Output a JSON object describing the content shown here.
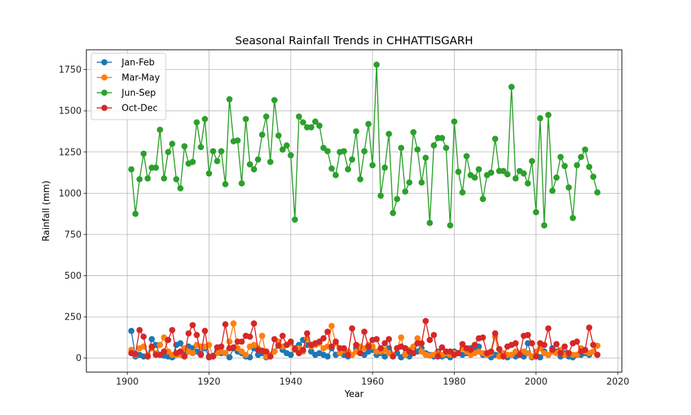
{
  "chart_data": {
    "type": "line",
    "title": "Seasonal Rainfall Trends in CHHATTISGARH",
    "xlabel": "Year",
    "ylabel": "Rainfall (mm)",
    "xlim": [
      1890,
      2021
    ],
    "ylim": [
      -85,
      1870
    ],
    "xticks": [
      1900,
      1920,
      1940,
      1960,
      1980,
      2000,
      2020
    ],
    "yticks": [
      0,
      250,
      500,
      750,
      1000,
      1250,
      1500,
      1750
    ],
    "grid": true,
    "legend_position": "top-left",
    "marker": "circle",
    "x_start": 1901,
    "x_end": 2015,
    "series": [
      {
        "name": "Jan-Feb",
        "color": "#1f77b4",
        "values": [
          165,
          10,
          20,
          10,
          10,
          115,
          80,
          20,
          15,
          10,
          5,
          80,
          90,
          20,
          70,
          60,
          40,
          25,
          60,
          10,
          15,
          40,
          30,
          30,
          5,
          60,
          40,
          30,
          10,
          5,
          60,
          20,
          30,
          5,
          10,
          40,
          80,
          50,
          30,
          20,
          60,
          80,
          110,
          80,
          40,
          20,
          30,
          20,
          10,
          60,
          20,
          30,
          20,
          10,
          20,
          60,
          30,
          20,
          40,
          50,
          20,
          30,
          10,
          60,
          20,
          30,
          5,
          60,
          10,
          30,
          40,
          60,
          30,
          20,
          10,
          40,
          10,
          20,
          5,
          40,
          30,
          20,
          30,
          60,
          60,
          70,
          20,
          30,
          5,
          20,
          20,
          10,
          5,
          20,
          10,
          30,
          10,
          90,
          5,
          20,
          5,
          40,
          20,
          60,
          40,
          10,
          30,
          10,
          5,
          20,
          20,
          30,
          20,
          40,
          20
        ]
      },
      {
        "name": "Mar-May",
        "color": "#ff7f0e",
        "values": [
          50,
          20,
          60,
          70,
          20,
          60,
          30,
          80,
          125,
          40,
          20,
          20,
          20,
          60,
          40,
          30,
          80,
          70,
          70,
          80,
          10,
          30,
          40,
          30,
          100,
          210,
          60,
          40,
          20,
          70,
          80,
          60,
          135,
          10,
          20,
          40,
          100,
          70,
          80,
          90,
          50,
          60,
          40,
          120,
          70,
          80,
          90,
          60,
          70,
          195,
          90,
          30,
          50,
          40,
          20,
          40,
          70,
          60,
          80,
          70,
          40,
          40,
          50,
          30,
          20,
          60,
          125,
          20,
          50,
          70,
          120,
          40,
          20,
          15,
          20,
          30,
          20,
          30,
          20,
          30,
          30,
          60,
          40,
          20,
          30,
          40,
          30,
          20,
          30,
          130,
          10,
          30,
          20,
          20,
          40,
          30,
          40,
          30,
          10,
          40,
          60,
          30,
          20,
          40,
          30,
          50,
          20,
          30,
          20,
          20,
          60,
          40,
          30,
          40,
          75
        ]
      },
      {
        "name": "Jun-Sep",
        "color": "#2ca02c",
        "values": [
          1145,
          875,
          1085,
          1240,
          1090,
          1155,
          1155,
          1385,
          1090,
          1250,
          1300,
          1085,
          1030,
          1285,
          1180,
          1190,
          1430,
          1280,
          1450,
          1120,
          1255,
          1195,
          1255,
          1055,
          1570,
          1315,
          1320,
          1060,
          1450,
          1175,
          1145,
          1205,
          1355,
          1465,
          1190,
          1565,
          1350,
          1265,
          1290,
          1230,
          840,
          1465,
          1430,
          1400,
          1400,
          1435,
          1410,
          1275,
          1255,
          1150,
          1110,
          1250,
          1255,
          1145,
          1205,
          1375,
          1085,
          1255,
          1420,
          1170,
          1780,
          985,
          1155,
          1360,
          880,
          965,
          1275,
          1010,
          1065,
          1370,
          1265,
          1065,
          1215,
          820,
          1290,
          1335,
          1335,
          1275,
          805,
          1435,
          1130,
          1005,
          1225,
          1110,
          1095,
          1145,
          965,
          1110,
          1125,
          1330,
          1135,
          1135,
          1115,
          1645,
          1090,
          1135,
          1120,
          1060,
          1195,
          885,
          1455,
          805,
          1475,
          1015,
          1095,
          1220,
          1165,
          1035,
          850,
          1170,
          1220,
          1265,
          1160,
          1100,
          1005
        ]
      },
      {
        "name": "Oct-Dec",
        "color": "#d62728",
        "values": [
          30,
          25,
          170,
          130,
          10,
          70,
          20,
          20,
          40,
          110,
          170,
          30,
          40,
          10,
          150,
          200,
          140,
          20,
          165,
          5,
          10,
          65,
          70,
          205,
          60,
          65,
          100,
          100,
          135,
          130,
          210,
          50,
          45,
          40,
          10,
          115,
          75,
          135,
          80,
          100,
          55,
          30,
          50,
          150,
          80,
          90,
          100,
          120,
          160,
          70,
          100,
          60,
          60,
          20,
          180,
          80,
          30,
          160,
          70,
          110,
          115,
          60,
          90,
          115,
          10,
          60,
          70,
          60,
          40,
          30,
          90,
          90,
          225,
          110,
          140,
          10,
          65,
          40,
          40,
          20,
          30,
          85,
          60,
          50,
          80,
          120,
          125,
          30,
          40,
          150,
          55,
          10,
          70,
          80,
          90,
          20,
          135,
          140,
          90,
          10,
          90,
          80,
          180,
          50,
          85,
          30,
          70,
          30,
          90,
          100,
          40,
          50,
          185,
          80,
          20
        ]
      }
    ]
  }
}
